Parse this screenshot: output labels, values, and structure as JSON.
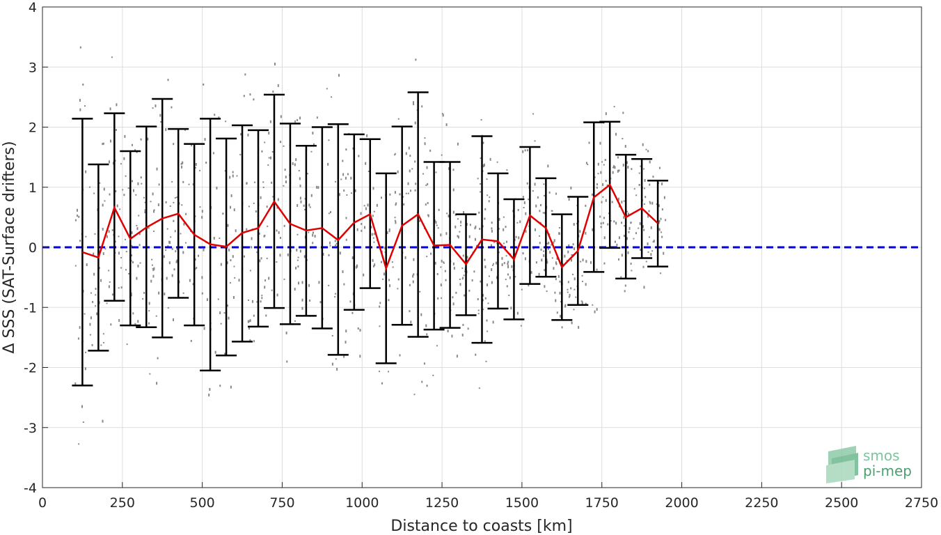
{
  "chart_data": {
    "type": "line",
    "title": "",
    "xlabel": "Distance to coasts [km]",
    "ylabel": "Δ SSS (SAT-Surface drifters)",
    "xlim": [
      0,
      2750
    ],
    "ylim": [
      -4,
      4
    ],
    "xticks": [
      0,
      250,
      500,
      750,
      1000,
      1250,
      1500,
      1750,
      2000,
      2250,
      2500,
      2750
    ],
    "yticks": [
      -4,
      -3,
      -2,
      -1,
      0,
      1,
      2,
      3,
      4
    ],
    "xtick_labels": [
      "0",
      "250",
      "500",
      "750",
      "1000",
      "1250",
      "1500",
      "1750",
      "2000",
      "2250",
      "2500",
      "2750"
    ],
    "ytick_labels": [
      "-4",
      "-3",
      "-2",
      "-1",
      "0",
      "1",
      "2",
      "3",
      "4"
    ],
    "grid": true,
    "reference_line": {
      "y": 0,
      "style": "dashed",
      "color": "#0000e0"
    },
    "colors": {
      "mean_line": "#e00000",
      "error_bars": "#000000",
      "scatter": "#888888",
      "grid": "#dddddd"
    },
    "series": [
      {
        "type": "line",
        "x": [
          125,
          175,
          225,
          275,
          325,
          375,
          425,
          475,
          525,
          575,
          625,
          675,
          725,
          775,
          825,
          875,
          925,
          975,
          1025,
          1075,
          1125,
          1175,
          1225,
          1275,
          1325,
          1375,
          1425,
          1475,
          1525,
          1575,
          1625,
          1675,
          1725,
          1775,
          1825,
          1875,
          1925
        ],
        "y": [
          -0.08,
          -0.17,
          0.66,
          0.14,
          0.33,
          0.48,
          0.56,
          0.21,
          0.05,
          0.01,
          0.24,
          0.32,
          0.76,
          0.39,
          0.28,
          0.32,
          0.12,
          0.41,
          0.55,
          -0.35,
          0.36,
          0.55,
          0.03,
          0.04,
          -0.28,
          0.13,
          0.1,
          -0.2,
          0.53,
          0.32,
          -0.33,
          -0.06,
          0.83,
          1.04,
          0.5,
          0.65,
          0.4
        ],
        "err_low": [
          -2.3,
          -1.72,
          -0.89,
          -1.3,
          -1.33,
          -1.5,
          -0.84,
          -1.3,
          -2.05,
          -1.8,
          -1.57,
          -1.32,
          -1.01,
          -1.28,
          -1.14,
          -1.35,
          -1.79,
          -1.04,
          -0.68,
          -1.93,
          -1.29,
          -1.49,
          -1.37,
          -1.34,
          -1.13,
          -1.59,
          -1.02,
          -1.2,
          -0.61,
          -0.49,
          -1.21,
          -0.96,
          -0.41,
          -0.01,
          -0.52,
          -0.18,
          -0.32
        ],
        "err_high": [
          2.14,
          1.38,
          2.23,
          1.6,
          2.01,
          2.47,
          1.97,
          1.72,
          2.14,
          1.81,
          2.03,
          1.95,
          2.54,
          2.06,
          1.69,
          2.0,
          2.05,
          1.88,
          1.8,
          1.23,
          2.01,
          2.58,
          1.42,
          1.42,
          0.55,
          1.85,
          1.23,
          0.8,
          1.67,
          1.15,
          0.55,
          0.84,
          2.08,
          2.09,
          1.54,
          1.47,
          1.11
        ]
      }
    ],
    "scatter_points_note": "dense gray scatter of individual differences behind the error bars"
  },
  "logo": {
    "line1": "smos",
    "line2": "pi-mep"
  }
}
